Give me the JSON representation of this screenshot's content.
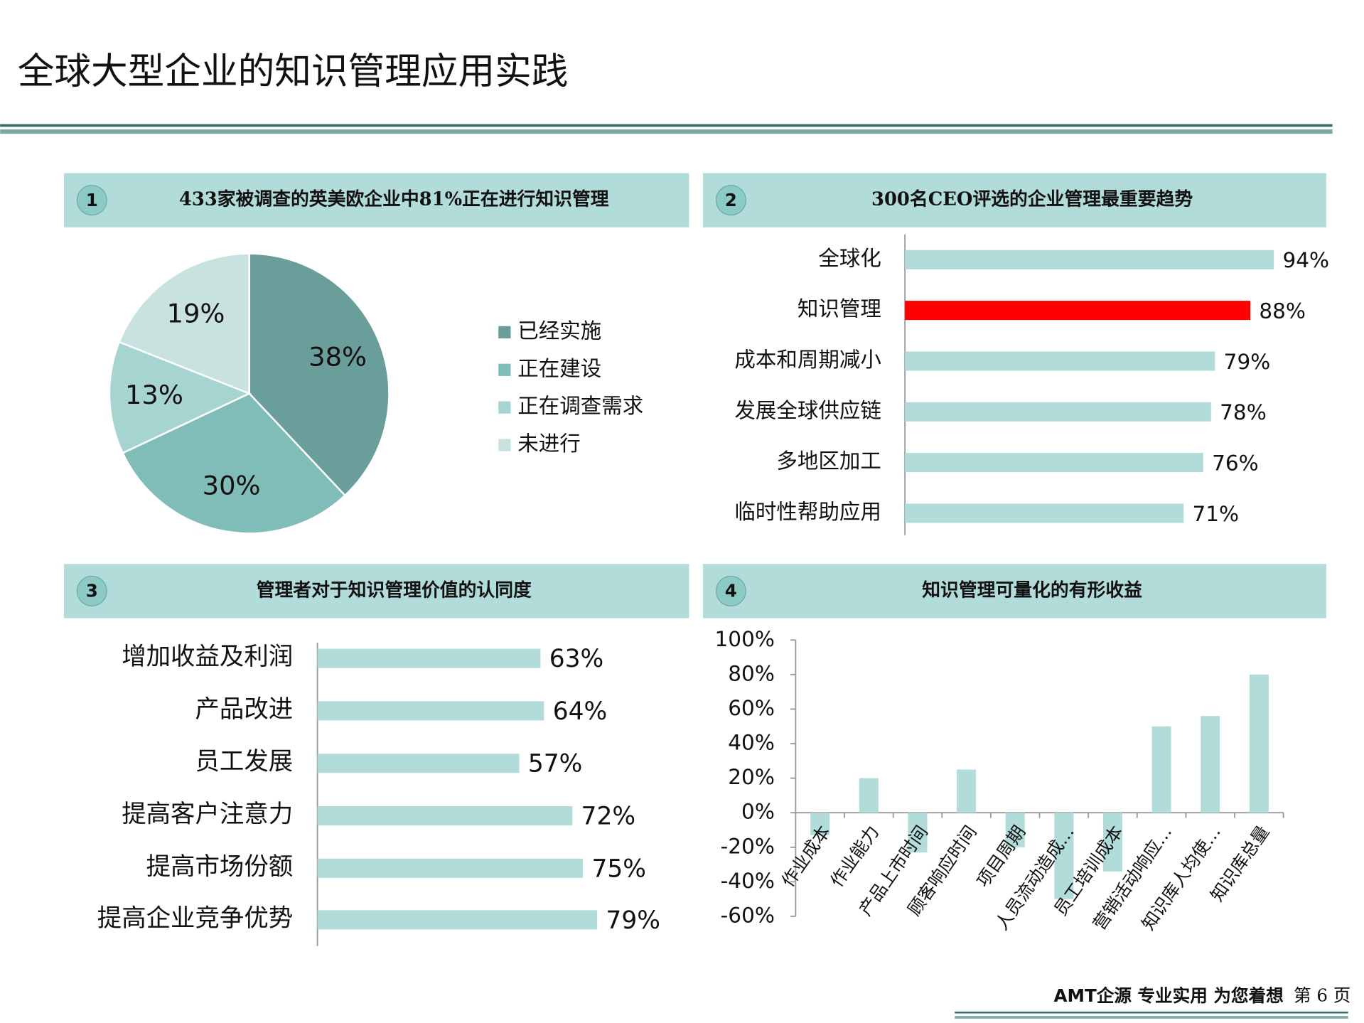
{
  "header": {
    "title": "全球大型企业的知识管理应用实践"
  },
  "footer": {
    "slogan": "AMT企源 专业实用 为您着想",
    "page": "第 6 页"
  },
  "chart_data": [
    {
      "type": "pie",
      "panel_number": "1",
      "title": "433家被调查的英美欧企业中81%正在进行知识管理",
      "categories": [
        "已经实施",
        "正在建设",
        "正在调查需求",
        "未进行"
      ],
      "values": [
        38,
        30,
        13,
        19
      ],
      "value_labels": [
        "38%",
        "30%",
        "13%",
        "19%"
      ],
      "colors": [
        "#6a9e9a",
        "#80bdb8",
        "#a6d4d0",
        "#c8e2e0"
      ]
    },
    {
      "type": "hbar",
      "panel_number": "2",
      "title": "300名CEO评选的企业管理最重要趋势",
      "categories": [
        "全球化",
        "知识管理",
        "成本和周期减小",
        "发展全球供应链",
        "多地区加工",
        "临时性帮助应用"
      ],
      "values": [
        94,
        88,
        79,
        78,
        76,
        71
      ],
      "value_labels": [
        "94%",
        "88%",
        "79%",
        "78%",
        "76%",
        "71%"
      ],
      "colors": [
        "#b2dcd9",
        "#ff0000",
        "#b2dcd9",
        "#b2dcd9",
        "#b2dcd9",
        "#b2dcd9"
      ],
      "xlim": [
        0,
        100
      ]
    },
    {
      "type": "hbar",
      "panel_number": "3",
      "title": "管理者对于知识管理价值的认同度",
      "categories": [
        "增加收益及利润",
        "产品改进",
        "员工发展",
        "提高客户注意力",
        "提高市场份额",
        "提高企业竞争优势"
      ],
      "values": [
        63,
        64,
        57,
        72,
        75,
        79
      ],
      "value_labels": [
        "63%",
        "64%",
        "57%",
        "72%",
        "75%",
        "79%"
      ],
      "color": "#b2dcd9",
      "xlim": [
        0,
        100
      ]
    },
    {
      "type": "bar",
      "panel_number": "4",
      "title": "知识管理可量化的有形收益",
      "categories": [
        "作业成本",
        "作业能力",
        "产品上市时间",
        "顾客响应时间",
        "项目周期",
        "人员流动造成…",
        "员工培训成本",
        "营销活动响应…",
        "知识库人均使…",
        "知识库总量"
      ],
      "values": [
        -13,
        20,
        -23,
        25,
        -20,
        -50,
        -34,
        50,
        56,
        80
      ],
      "color": "#b2dcd9",
      "ylim": [
        -60,
        100
      ],
      "yticks": [
        {
          "value": -60,
          "label": "-60%"
        },
        {
          "value": -40,
          "label": "-40%"
        },
        {
          "value": -20,
          "label": "-20%"
        },
        {
          "value": 0,
          "label": "0%"
        },
        {
          "value": 20,
          "label": "20%"
        },
        {
          "value": 40,
          "label": "40%"
        },
        {
          "value": 60,
          "label": "60%"
        },
        {
          "value": 80,
          "label": "80%"
        },
        {
          "value": 100,
          "label": "100%"
        }
      ]
    }
  ]
}
